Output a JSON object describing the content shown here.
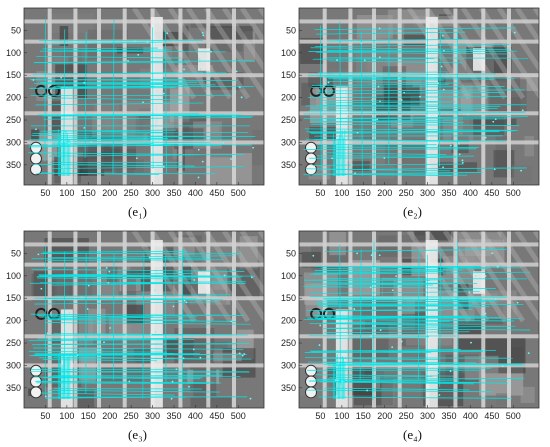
{
  "figure": {
    "axes": {
      "x_ticks": [
        "50",
        "100",
        "150",
        "200",
        "250",
        "300",
        "350",
        "400",
        "450",
        "500"
      ],
      "y_ticks": [
        "50",
        "100",
        "150",
        "200",
        "250",
        "300",
        "350"
      ],
      "x_range": [
        0,
        560
      ],
      "y_range": [
        0,
        395
      ]
    },
    "colors": {
      "match_line": "#00e8e8",
      "match_point": "#66ffff"
    },
    "panels": [
      {
        "id": "e1",
        "caption": "(e₁)"
      },
      {
        "id": "e2",
        "caption": "(e₂)"
      },
      {
        "id": "e3",
        "caption": "(e₃)"
      },
      {
        "id": "e4",
        "caption": "(e₄)"
      }
    ]
  }
}
